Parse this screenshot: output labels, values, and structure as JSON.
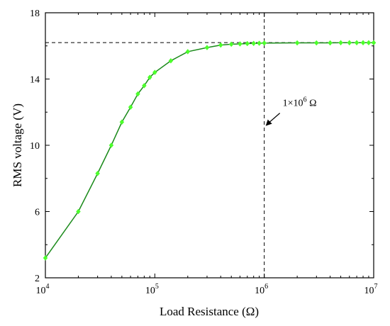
{
  "chart_data": {
    "type": "line",
    "title": "",
    "xlabel": "Load Resistance (Ω)",
    "ylabel": "RMS voltage (V)",
    "xscale": "log",
    "xlim": [
      10000,
      10000000
    ],
    "ylim": [
      2,
      18
    ],
    "grid": false,
    "x_ticks": [
      {
        "value": 10000,
        "base": "10",
        "exp": "4"
      },
      {
        "value": 100000,
        "base": "10",
        "exp": "5"
      },
      {
        "value": 1000000,
        "base": "10",
        "exp": "6"
      },
      {
        "value": 10000000,
        "base": "10",
        "exp": "7"
      }
    ],
    "y_ticks": [
      {
        "value": 2,
        "label": "2"
      },
      {
        "value": 6,
        "label": "6"
      },
      {
        "value": 10,
        "label": "10"
      },
      {
        "value": 14,
        "label": "14"
      },
      {
        "value": 18,
        "label": "18"
      }
    ],
    "series": [
      {
        "color": "#1a8a1a",
        "marker_color": "#4cff2b",
        "x": [
          10000,
          20000,
          30000,
          40000,
          50000,
          60000,
          70000,
          80000,
          90000,
          100000,
          140000,
          200000,
          300000,
          400000,
          500000,
          600000,
          700000,
          800000,
          900000,
          1000000,
          2000000,
          3000000,
          4000000,
          5000000,
          6000000,
          7000000,
          8000000,
          9000000,
          10000000
        ],
        "values": [
          3.2,
          6.0,
          8.3,
          10.0,
          11.4,
          12.3,
          13.1,
          13.6,
          14.1,
          14.4,
          15.1,
          15.65,
          15.9,
          16.05,
          16.1,
          16.12,
          16.14,
          16.15,
          16.16,
          16.17,
          16.18,
          16.18,
          16.18,
          16.19,
          16.19,
          16.19,
          16.19,
          16.19,
          16.19
        ]
      }
    ],
    "reference_lines": {
      "horizontal_y": 16.2,
      "vertical_x": 1000000,
      "style": "dashed"
    },
    "annotation": {
      "text_main": "1×10",
      "text_exp": "6",
      "text_unit": " Ω",
      "arrow_target_x": 1000000,
      "arrow_target_y": 11.3
    }
  }
}
